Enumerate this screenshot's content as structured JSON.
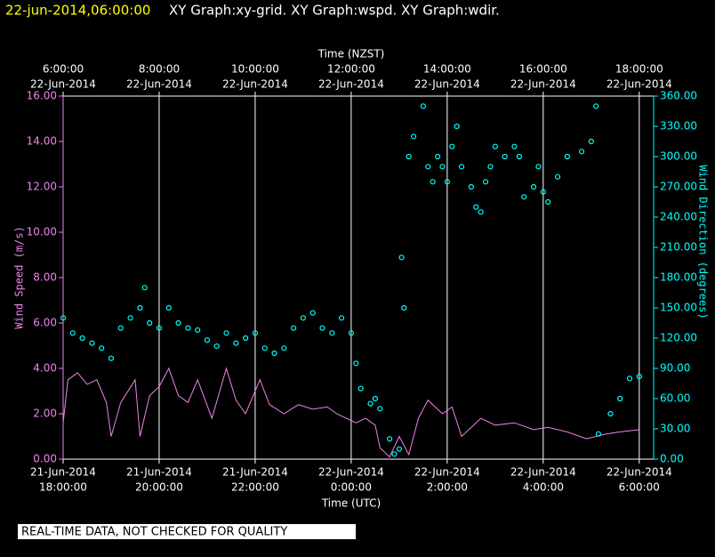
{
  "chart_data": {
    "type": "line",
    "title": "22-jun-2014,06:00:00",
    "subtitle": "XY Graph:xy-grid.  XY Graph:wspd.  XY Graph:wdir.",
    "top_xlabel": "Time (NZST)",
    "xlabel": "Time (UTC)",
    "ylabel": "Wind Speed (m/s)",
    "y2label": "Wind Direction (degrees)",
    "footer": "REAL-TIME DATA, NOT CHECKED FOR QUALITY",
    "grid": true,
    "xlim": [
      0,
      12.3
    ],
    "xticks": [
      {
        "value": 0,
        "label": [
          "21-Jun-2014",
          "18:00:00"
        ]
      },
      {
        "value": 2,
        "label": [
          "21-Jun-2014",
          "20:00:00"
        ]
      },
      {
        "value": 4,
        "label": [
          "21-Jun-2014",
          "22:00:00"
        ]
      },
      {
        "value": 6,
        "label": [
          "22-Jun-2014",
          "0:00:00"
        ]
      },
      {
        "value": 8,
        "label": [
          "22-Jun-2014",
          "2:00:00"
        ]
      },
      {
        "value": 10,
        "label": [
          "22-Jun-2014",
          "4:00:00"
        ]
      },
      {
        "value": 12,
        "label": [
          "22-Jun-2014",
          "6:00:00"
        ]
      }
    ],
    "top_xticks": [
      {
        "value": 0,
        "label": [
          "6:00:00",
          "22-Jun-2014"
        ]
      },
      {
        "value": 2,
        "label": [
          "8:00:00",
          "22-Jun-2014"
        ]
      },
      {
        "value": 4,
        "label": [
          "10:00:00",
          "22-Jun-2014"
        ]
      },
      {
        "value": 6,
        "label": [
          "12:00:00",
          "22-Jun-2014"
        ]
      },
      {
        "value": 8,
        "label": [
          "14:00:00",
          "22-Jun-2014"
        ]
      },
      {
        "value": 10,
        "label": [
          "16:00:00",
          "22-Jun-2014"
        ]
      },
      {
        "value": 12,
        "label": [
          "18:00:00",
          "22-Jun-2014"
        ]
      }
    ],
    "ylim": [
      0,
      16
    ],
    "yticks": [
      {
        "value": 0,
        "label": "0.00"
      },
      {
        "value": 2,
        "label": "2.00"
      },
      {
        "value": 4,
        "label": "4.00"
      },
      {
        "value": 6,
        "label": "6.00"
      },
      {
        "value": 8,
        "label": "8.00"
      },
      {
        "value": 10,
        "label": "10.00"
      },
      {
        "value": 12,
        "label": "12.00"
      },
      {
        "value": 14,
        "label": "14.00"
      },
      {
        "value": 16,
        "label": "16.00"
      }
    ],
    "y2lim": [
      0,
      360
    ],
    "y2ticks": [
      {
        "value": 0,
        "label": "0.00"
      },
      {
        "value": 30,
        "label": "30.00"
      },
      {
        "value": 60,
        "label": "60.00"
      },
      {
        "value": 90,
        "label": "90.00"
      },
      {
        "value": 120,
        "label": "120.00"
      },
      {
        "value": 150,
        "label": "150.00"
      },
      {
        "value": 180,
        "label": "180.00"
      },
      {
        "value": 210,
        "label": "210.00"
      },
      {
        "value": 240,
        "label": "240.00"
      },
      {
        "value": 270,
        "label": "270.00"
      },
      {
        "value": 300,
        "label": "300.00"
      },
      {
        "value": 330,
        "label": "330.00"
      },
      {
        "value": 360,
        "label": "360.00"
      }
    ],
    "series": [
      {
        "name": "wspd",
        "color": "#ee82ee",
        "axis": "y",
        "mark": "line",
        "x": [
          0,
          0.1,
          0.3,
          0.5,
          0.7,
          0.9,
          1.0,
          1.2,
          1.5,
          1.6,
          1.8,
          2.0,
          2.2,
          2.4,
          2.6,
          2.8,
          3.1,
          3.4,
          3.6,
          3.8,
          4.1,
          4.3,
          4.6,
          4.9,
          5.2,
          5.5,
          5.7,
          6.1,
          6.3,
          6.5,
          6.6,
          6.8,
          7.0,
          7.2,
          7.4,
          7.6,
          7.9,
          8.1,
          8.3,
          8.7,
          9.0,
          9.4,
          9.8,
          10.1,
          10.5,
          10.9,
          11.3,
          11.6,
          12.0
        ],
        "values": [
          1.6,
          3.5,
          3.8,
          3.3,
          3.5,
          2.5,
          1.0,
          2.5,
          3.5,
          1.0,
          2.8,
          3.2,
          4.0,
          2.8,
          2.5,
          3.5,
          1.8,
          4.0,
          2.6,
          2.0,
          3.5,
          2.4,
          2.0,
          2.4,
          2.2,
          2.3,
          2.0,
          1.6,
          1.8,
          1.5,
          0.5,
          0.1,
          1.0,
          0.2,
          1.8,
          2.6,
          2.0,
          2.3,
          1.0,
          1.8,
          1.5,
          1.6,
          1.3,
          1.4,
          1.2,
          0.9,
          1.1,
          1.2,
          1.3
        ]
      },
      {
        "name": "wdir",
        "color": "#00ffff",
        "axis": "y2",
        "mark": "circle",
        "x": [
          0,
          0.2,
          0.4,
          0.6,
          0.8,
          1.0,
          1.2,
          1.4,
          1.6,
          1.7,
          1.8,
          2.0,
          2.2,
          2.4,
          2.6,
          2.8,
          3.0,
          3.2,
          3.4,
          3.6,
          3.8,
          4.0,
          4.2,
          4.4,
          4.6,
          4.8,
          5.0,
          5.2,
          5.4,
          5.6,
          5.8,
          6.0,
          6.1,
          6.2,
          6.4,
          6.5,
          6.6,
          6.8,
          6.9,
          7.0,
          7.05,
          7.1,
          7.2,
          7.3,
          7.5,
          7.6,
          7.7,
          7.8,
          7.9,
          8.0,
          8.1,
          8.2,
          8.3,
          8.5,
          8.6,
          8.7,
          8.8,
          8.9,
          9.0,
          9.2,
          9.4,
          9.5,
          9.6,
          9.8,
          9.9,
          10.0,
          10.1,
          10.3,
          10.5,
          10.8,
          11.0,
          11.1,
          11.15,
          11.4,
          11.6,
          11.8,
          12.0
        ],
        "values": [
          140,
          125,
          120,
          115,
          110,
          100,
          130,
          140,
          150,
          170,
          135,
          130,
          150,
          135,
          130,
          128,
          118,
          112,
          125,
          115,
          120,
          125,
          110,
          105,
          110,
          130,
          140,
          145,
          130,
          125,
          140,
          125,
          95,
          70,
          55,
          60,
          50,
          20,
          5,
          10,
          200,
          150,
          300,
          320,
          350,
          290,
          275,
          300,
          290,
          275,
          310,
          330,
          290,
          270,
          250,
          245,
          275,
          290,
          310,
          300,
          310,
          300,
          260,
          270,
          290,
          265,
          255,
          280,
          300,
          305,
          315,
          350,
          25,
          45,
          60,
          80,
          82
        ]
      }
    ]
  }
}
